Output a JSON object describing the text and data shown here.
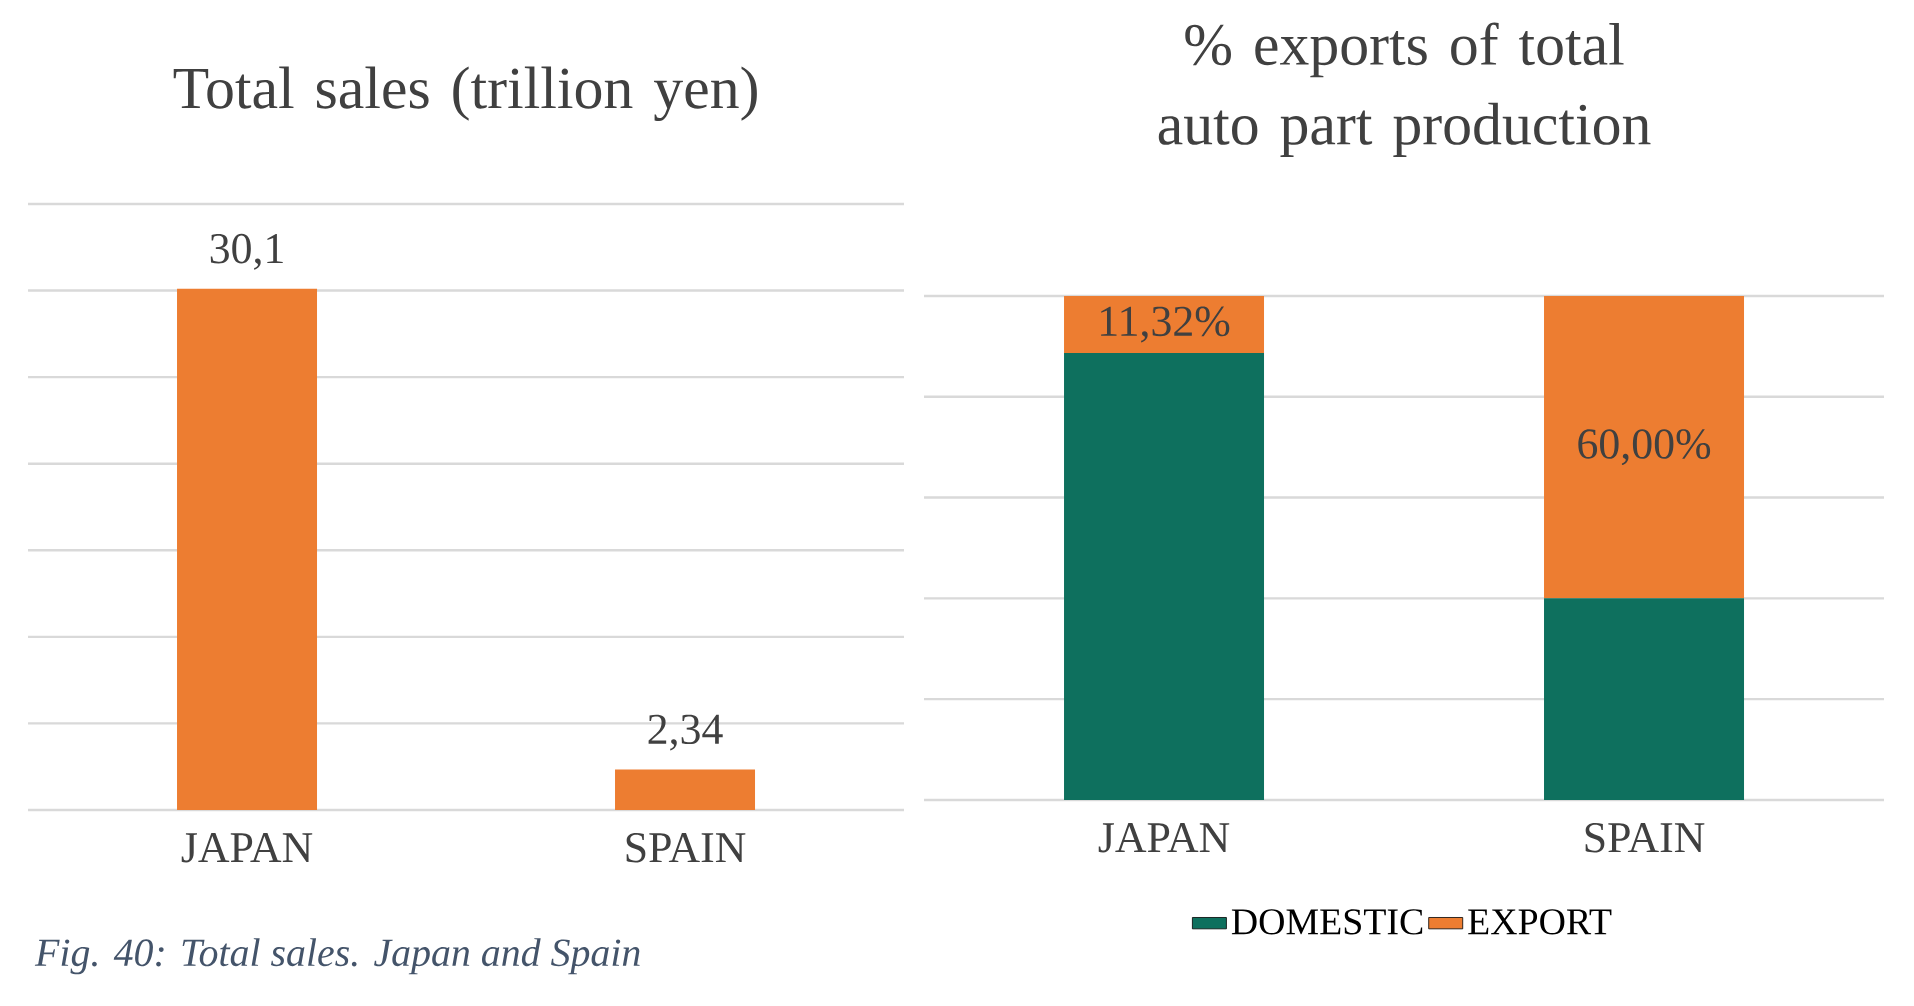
{
  "chart_data": [
    {
      "type": "bar",
      "title": "Total sales (trillion yen)",
      "categories": [
        "JAPAN",
        "SPAIN"
      ],
      "values": [
        30.1,
        2.34
      ],
      "value_labels": [
        "30,1",
        "2,34"
      ],
      "color": "#ed7d31",
      "ylim": [
        0,
        35
      ],
      "yticks": [
        {
          "value": 0,
          "label": null
        },
        {
          "value": 5,
          "label": null
        },
        {
          "value": 10,
          "label": null
        },
        {
          "value": 15,
          "label": null
        },
        {
          "value": 20,
          "label": null
        },
        {
          "value": 25,
          "label": null
        },
        {
          "value": 30,
          "label": null
        },
        {
          "value": 35,
          "label": null
        }
      ],
      "grid": "y",
      "tick_labels": "x",
      "annotations": [
        "Fig. 40: Total sales. Japan and Spain"
      ]
    },
    {
      "type": "bar",
      "title": "% exports of total auto part production",
      "categories": [
        "JAPAN",
        "SPAIN"
      ],
      "stacked": true,
      "series": [
        {
          "name": "DOMESTIC",
          "color": "#0e705e",
          "values": [
            88.68,
            40
          ]
        },
        {
          "name": "EXPORT",
          "color": "#ed7d31",
          "values": [
            11.32,
            60
          ],
          "value_labels": [
            "11,32%",
            "60,00%"
          ]
        }
      ],
      "ylim": [
        0,
        100
      ],
      "yticks": [
        {
          "value": 0,
          "label": null
        },
        {
          "value": 20,
          "label": null
        },
        {
          "value": 40,
          "label": null
        },
        {
          "value": 60,
          "label": null
        },
        {
          "value": 80,
          "label": null
        },
        {
          "value": 100,
          "label": null
        }
      ],
      "grid": "y",
      "tick_labels": "x",
      "legend": "bottom"
    }
  ]
}
